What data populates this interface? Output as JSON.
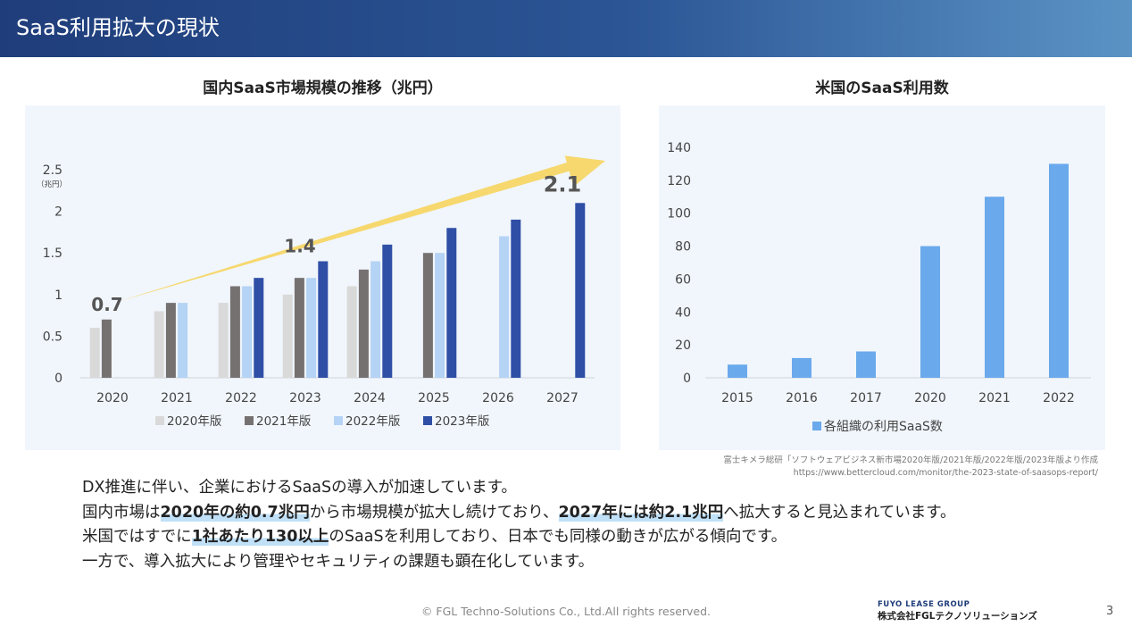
{
  "header": {
    "title": "SaaS利用拡大の現状"
  },
  "chart_data": [
    {
      "type": "bar",
      "title": "国内SaaS市場規模の推移（兆円）",
      "ylabel": "（兆円）",
      "categories": [
        "2020",
        "2021",
        "2022",
        "2023",
        "2024",
        "2025",
        "2026",
        "2027"
      ],
      "ylim": [
        0,
        2.5
      ],
      "yticks": [
        "0",
        "0.5",
        "1",
        "1.5",
        "2",
        "2.5"
      ],
      "legend_position": "bottom",
      "series": [
        {
          "name": "2020年版",
          "color": "#d9d9d9",
          "values": [
            0.6,
            0.8,
            0.9,
            1.0,
            1.1,
            null,
            null,
            null
          ]
        },
        {
          "name": "2021年版",
          "color": "#767171",
          "values": [
            0.7,
            0.9,
            1.1,
            1.2,
            1.3,
            1.5,
            null,
            null
          ]
        },
        {
          "name": "2022年版",
          "color": "#b4d3f5",
          "values": [
            null,
            0.9,
            1.1,
            1.2,
            1.4,
            1.5,
            1.7,
            null
          ]
        },
        {
          "name": "2023年版",
          "color": "#2f4fa6",
          "values": [
            null,
            null,
            1.2,
            1.4,
            1.6,
            1.8,
            1.9,
            2.1
          ]
        }
      ],
      "annotations": [
        {
          "text": "0.7",
          "category": "2020",
          "value": 0.7
        },
        {
          "text": "1.4",
          "category": "2023",
          "value": 1.4
        },
        {
          "text": "2.1",
          "category": "2027",
          "value": 2.1
        }
      ],
      "arrow_color": "#f6d45a",
      "grid": false
    },
    {
      "type": "bar",
      "title": "米国のSaaS利用数",
      "categories": [
        "2015",
        "2016",
        "2017",
        "2020",
        "2021",
        "2022"
      ],
      "ylim": [
        0,
        140
      ],
      "yticks": [
        "0",
        "20",
        "40",
        "60",
        "80",
        "100",
        "120",
        "140"
      ],
      "legend_position": "bottom",
      "series": [
        {
          "name": "各組織の利用SaaS数",
          "color": "#6aa9ec",
          "values": [
            8,
            12,
            16,
            80,
            110,
            130
          ]
        }
      ],
      "grid": false
    }
  ],
  "source": {
    "line1": "富士キメラ総研「ソフトウェアビジネス新市場2020年版/2021年版/2022年版/2023年版より作成",
    "line2": "https://www.bettercloud.com/monitor/the-2023-state-of-saasops-report/"
  },
  "body": {
    "line1": "DX推進に伴い、企業におけるSaaSの導入が加速しています。",
    "line2_a": "国内市場は",
    "line2_b": "2020年の約0.7兆円",
    "line2_c": "から市場規模が拡大し続けており、",
    "line2_d": "2027年には約2.1兆円",
    "line2_e": "へ拡大すると見込まれています。",
    "line3_a": "米国ではすでに",
    "line3_b": "1社あたり130以上",
    "line3_c": "のSaaSを利用しており、日本でも同様の動きが広がる傾向です。",
    "line4": "一方で、導入拡大により管理やセキュリティの課題も顕在化しています。"
  },
  "footer": {
    "copyright": "© FGL Techno-Solutions Co., Ltd.All rights reserved.",
    "logo_top": "FUYO LEASE GROUP",
    "logo_bottom": "株式会社FGLテクノソリューションズ",
    "page": "3"
  }
}
